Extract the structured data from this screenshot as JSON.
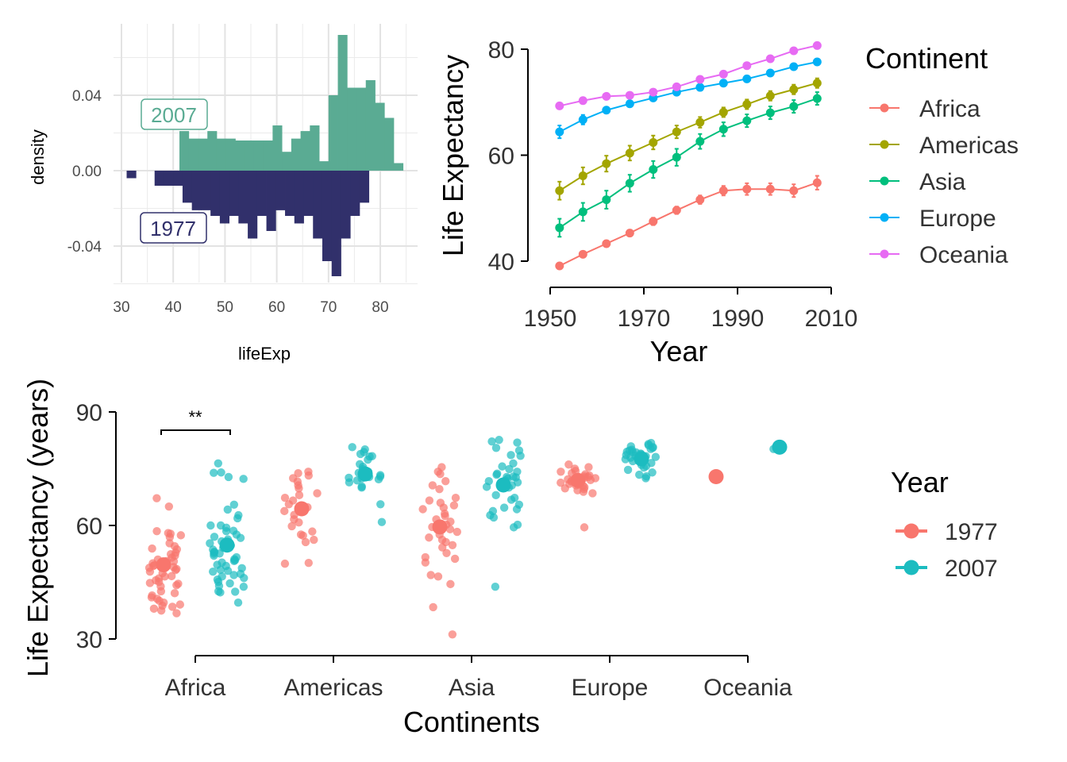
{
  "chart_data": [
    {
      "type": "histogram",
      "xlabel": "lifeExp",
      "ylabel": "density",
      "xlim": [
        30,
        85
      ],
      "ylim": [
        -0.06,
        0.072
      ],
      "xticks": [
        30,
        40,
        50,
        60,
        70,
        80
      ],
      "yticks": [
        -0.04,
        0.0,
        0.04
      ],
      "ytick_labels": [
        "-0.04",
        "0.00",
        "0.04"
      ],
      "grid": true,
      "bin_width": 1.8,
      "series": [
        {
          "name": "2007",
          "color": "#5aab93",
          "direction": "up",
          "bins": [
            [
              41.2,
              0.021
            ],
            [
              43.0,
              0.017
            ],
            [
              44.8,
              0.017
            ],
            [
              46.6,
              0.021
            ],
            [
              48.4,
              0.017
            ],
            [
              50.2,
              0.017
            ],
            [
              52.0,
              0.016
            ],
            [
              53.8,
              0.016
            ],
            [
              55.6,
              0.016
            ],
            [
              57.4,
              0.016
            ],
            [
              59.2,
              0.024
            ],
            [
              61.0,
              0.01
            ],
            [
              62.8,
              0.017
            ],
            [
              64.6,
              0.021
            ],
            [
              66.4,
              0.024
            ],
            [
              68.2,
              0.005
            ],
            [
              70.0,
              0.04
            ],
            [
              71.8,
              0.072
            ],
            [
              73.6,
              0.044
            ],
            [
              75.4,
              0.044
            ],
            [
              77.2,
              0.048
            ],
            [
              79.0,
              0.036
            ],
            [
              80.8,
              0.028
            ],
            [
              82.6,
              0.004
            ]
          ]
        },
        {
          "name": "1977",
          "color": "#31306b",
          "direction": "down",
          "bins": [
            [
              31.0,
              -0.004
            ],
            [
              36.4,
              -0.008
            ],
            [
              38.2,
              -0.008
            ],
            [
              40.0,
              -0.008
            ],
            [
              41.8,
              -0.017
            ],
            [
              43.6,
              -0.021
            ],
            [
              45.4,
              -0.021
            ],
            [
              47.2,
              -0.024
            ],
            [
              49.0,
              -0.028
            ],
            [
              50.8,
              -0.024
            ],
            [
              52.6,
              -0.028
            ],
            [
              54.4,
              -0.036
            ],
            [
              56.2,
              -0.024
            ],
            [
              58.0,
              -0.032
            ],
            [
              59.8,
              -0.021
            ],
            [
              61.6,
              -0.024
            ],
            [
              63.4,
              -0.028
            ],
            [
              65.2,
              -0.024
            ],
            [
              67.0,
              -0.036
            ],
            [
              68.8,
              -0.048
            ],
            [
              70.6,
              -0.056
            ],
            [
              72.4,
              -0.036
            ],
            [
              74.2,
              -0.024
            ],
            [
              76.0,
              -0.017
            ]
          ]
        }
      ],
      "annotations": [
        "2007",
        "1977"
      ]
    },
    {
      "type": "line",
      "xlabel": "Year",
      "ylabel": "Life Expectancy",
      "xlim": [
        1950,
        2010
      ],
      "ylim": [
        40,
        80
      ],
      "xticks": [
        1950,
        1970,
        1990,
        2010
      ],
      "yticks": [
        40,
        60,
        80
      ],
      "legend_title": "Continent",
      "legend_position": "right",
      "x": [
        1952,
        1957,
        1962,
        1967,
        1972,
        1977,
        1982,
        1987,
        1992,
        1997,
        2002,
        2007
      ],
      "series": [
        {
          "name": "Africa",
          "color": "#f8766d",
          "values": [
            39.1,
            41.3,
            43.3,
            45.3,
            47.5,
            49.6,
            51.6,
            53.3,
            53.6,
            53.6,
            53.3,
            54.8
          ],
          "err": [
            0.5,
            0.5,
            0.6,
            0.6,
            0.7,
            0.7,
            0.8,
            0.9,
            1.1,
            1.1,
            1.2,
            1.3
          ]
        },
        {
          "name": "Americas",
          "color": "#a3a500",
          "values": [
            53.3,
            56.1,
            58.4,
            60.4,
            62.4,
            64.4,
            66.2,
            68.1,
            69.6,
            71.2,
            72.4,
            73.6
          ],
          "err": [
            1.7,
            1.6,
            1.5,
            1.4,
            1.3,
            1.2,
            1.0,
            0.9,
            0.9,
            0.9,
            0.9,
            0.9
          ]
        },
        {
          "name": "Asia",
          "color": "#00bf7d",
          "values": [
            46.3,
            49.3,
            51.6,
            54.7,
            57.3,
            59.6,
            62.6,
            64.9,
            66.5,
            68.0,
            69.2,
            70.7
          ],
          "err": [
            1.7,
            1.7,
            1.7,
            1.6,
            1.6,
            1.6,
            1.4,
            1.3,
            1.2,
            1.2,
            1.2,
            1.2
          ]
        },
        {
          "name": "Europe",
          "color": "#00b0f6",
          "values": [
            64.4,
            66.7,
            68.5,
            69.7,
            70.8,
            71.9,
            72.8,
            73.6,
            74.4,
            75.5,
            76.7,
            77.6
          ],
          "err": [
            1.2,
            0.9,
            0.6,
            0.5,
            0.4,
            0.4,
            0.3,
            0.3,
            0.3,
            0.3,
            0.3,
            0.3
          ]
        },
        {
          "name": "Oceania",
          "color": "#e76bf3",
          "values": [
            69.3,
            70.3,
            71.1,
            71.3,
            71.9,
            72.9,
            74.3,
            75.3,
            76.9,
            78.2,
            79.7,
            80.7
          ],
          "err": [
            0.2,
            0.2,
            0.2,
            0.2,
            0.2,
            0.3,
            0.3,
            0.3,
            0.3,
            0.3,
            0.3,
            0.3
          ]
        }
      ]
    },
    {
      "type": "scatter",
      "xlabel": "Continents",
      "ylabel": "Life Expectancy (years)",
      "ylim": [
        30,
        90
      ],
      "yticks": [
        30,
        60,
        90
      ],
      "categories": [
        "Africa",
        "Americas",
        "Asia",
        "Europe",
        "Oceania"
      ],
      "legend_title": "Year",
      "legend_position": "right",
      "significance": {
        "category": "Africa",
        "label": "**"
      },
      "series": [
        {
          "name": "1977",
          "color": "#f8766d",
          "means": [
            49.6,
            64.4,
            59.6,
            71.9,
            72.9
          ],
          "points": [
            [
              65.0,
              67.2,
              58.0,
              57.4,
              56.9,
              55.3,
              53.9,
              53.7,
              52.4,
              52.0,
              51.5,
              51.0,
              50.5,
              50.0,
              49.7,
              49.5,
              49.3,
              49.0,
              48.5,
              48.2,
              47.8,
              47.4,
              46.6,
              46.0,
              45.5,
              45.1,
              44.6,
              44.2,
              43.9,
              42.6,
              42.1,
              41.5,
              41.0,
              40.6,
              40.1,
              39.6,
              39.1,
              38.8,
              38.5,
              38.0,
              37.5,
              36.8,
              54.5,
              58.5,
              46.5,
              52.8,
              57.8,
              44.8,
              50.6,
              48.8
            ],
            [
              74.2,
              73.8,
              73.2,
              72.5,
              71.6,
              70.6,
              69.8,
              68.5,
              68.0,
              67.3,
              66.6,
              65.6,
              64.8,
              63.8,
              62.8,
              61.6,
              60.8,
              59.8,
              58.4,
              57.6,
              57.3,
              56.2,
              55.6,
              50.1,
              49.9
            ],
            [
              75.4,
              74.2,
              73.6,
              71.7,
              70.6,
              69.6,
              67.3,
              66.6,
              66.0,
              65.3,
              64.7,
              64.3,
              63.1,
              62.5,
              61.6,
              61.0,
              60.2,
              59.6,
              59.0,
              58.3,
              57.6,
              56.8,
              56.2,
              55.6,
              54.8,
              54.2,
              52.7,
              51.6,
              51.2,
              50.2,
              46.9,
              46.5,
              44.5,
              38.4,
              31.2
            ],
            [
              76.1,
              75.4,
              75.0,
              74.4,
              74.2,
              73.8,
              73.5,
              73.2,
              72.8,
              72.5,
              72.3,
              72.0,
              71.6,
              71.3,
              71.0,
              70.8,
              70.5,
              70.1,
              69.6,
              69.3,
              68.9,
              68.5,
              59.5,
              69.8,
              71.4,
              72.2,
              73.0,
              70.6,
              71.8,
              72.6
            ],
            [
              73.2,
              72.8
            ]
          ]
        },
        {
          "name": "2007",
          "color": "#1cbcc0",
          "means": [
            54.8,
            73.6,
            70.7,
            77.6,
            80.7
          ],
          "points": [
            [
              76.4,
              74.0,
              73.9,
              72.8,
              72.3,
              65.5,
              64.2,
              62.7,
              61.9,
              60.0,
              59.4,
              58.5,
              57.0,
              56.7,
              55.8,
              55.3,
              54.7,
              54.1,
              53.6,
              52.9,
              52.5,
              52.0,
              51.6,
              51.1,
              50.6,
              50.2,
              49.6,
              49.3,
              48.7,
              48.3,
              47.8,
              47.2,
              46.5,
              46.1,
              45.7,
              45.1,
              44.7,
              43.8,
              42.6,
              42.5,
              42.3,
              39.6,
              52.6,
              56.3,
              50.8,
              48.0,
              46.9,
              58.6,
              44.0,
              53.0,
              57.6,
              60.0
            ],
            [
              80.7,
              80.1,
              79.4,
              78.9,
              78.3,
              78.2,
              77.4,
              76.2,
              75.5,
              74.9,
              74.2,
              73.9,
              73.3,
              72.9,
              72.8,
              72.4,
              72.2,
              71.9,
              71.4,
              70.3,
              70.0,
              65.6,
              60.9,
              72.6,
              73.7
            ],
            [
              82.6,
              82.2,
              81.9,
              80.5,
              79.8,
              78.6,
              78.4,
              76.4,
              75.6,
              74.9,
              74.2,
              73.4,
              72.9,
              72.8,
              72.4,
              71.9,
              71.7,
              71.4,
              70.6,
              70.2,
              70.0,
              68.0,
              67.3,
              66.8,
              65.5,
              64.7,
              64.3,
              63.8,
              62.7,
              62.1,
              60.2,
              59.5,
              43.8,
              73.7,
              72.7
            ],
            [
              81.8,
              81.5,
              81.2,
              80.9,
              80.7,
              80.5,
              80.2,
              80.0,
              79.8,
              79.5,
              79.4,
              79.3,
              79.0,
              78.8,
              78.6,
              78.4,
              78.3,
              78.1,
              77.9,
              77.5,
              77.0,
              76.5,
              76.0,
              75.7,
              75.3,
              74.7,
              74.0,
              73.4,
              73.0,
              72.5
            ],
            [
              81.2,
              80.2
            ]
          ]
        }
      ]
    }
  ]
}
